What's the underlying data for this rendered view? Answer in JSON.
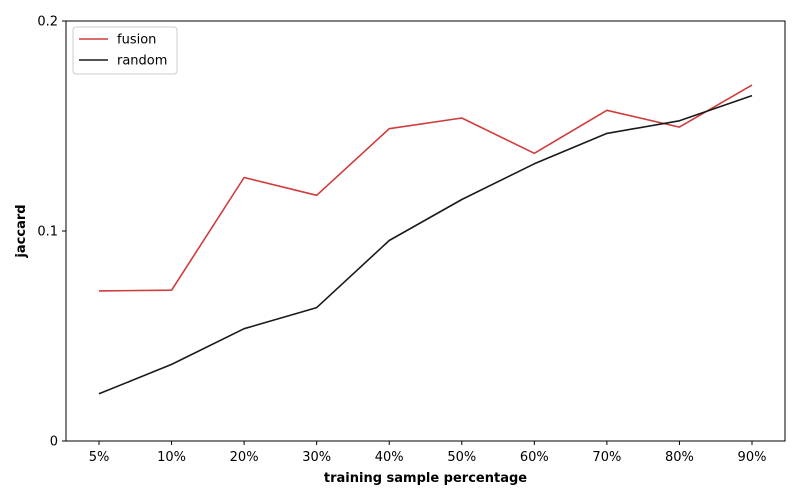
{
  "chart_data": {
    "type": "line",
    "categories": [
      "5%",
      "10%",
      "20%",
      "30%",
      "40%",
      "50%",
      "60%",
      "70%",
      "80%",
      "90%"
    ],
    "series": [
      {
        "name": "fusion",
        "color": "#d03b3b",
        "values": [
          0.0715,
          0.0718,
          0.1255,
          0.117,
          0.1487,
          0.1538,
          0.137,
          0.1575,
          0.1495,
          0.1695
        ]
      },
      {
        "name": "random",
        "color": "#1a1a1a",
        "values": [
          0.0225,
          0.0365,
          0.0535,
          0.0635,
          0.0955,
          0.115,
          0.132,
          0.1465,
          0.1525,
          0.1645
        ]
      }
    ],
    "xlabel": "training sample percentage",
    "ylabel": "jaccard",
    "ylim": [
      0,
      0.2
    ],
    "yticks": [
      {
        "value": 0,
        "label": "0"
      },
      {
        "value": 0.1,
        "label": "0.1"
      },
      {
        "value": 0.2,
        "label": "0.2"
      }
    ],
    "grid": false,
    "legend": {
      "position": "top-left"
    }
  }
}
